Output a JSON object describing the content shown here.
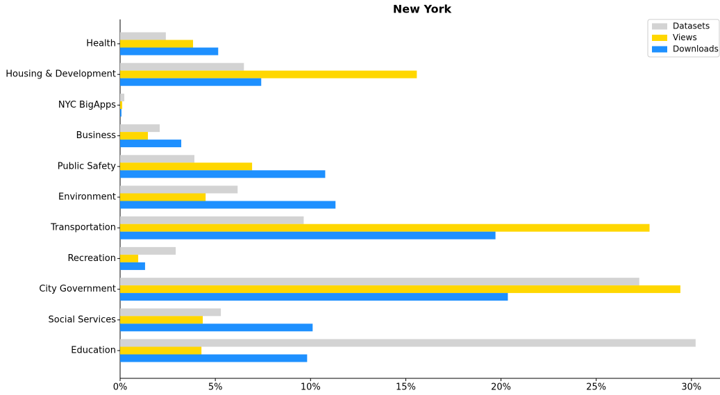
{
  "chart_data": {
    "type": "bar",
    "orientation": "horizontal",
    "title": "New York",
    "categories": [
      "Health",
      "Housing & Development",
      "NYC BigApps",
      "Business",
      "Public Safety",
      "Environment",
      "Transportation",
      "Recreation",
      "City Government",
      "Social Services",
      "Education"
    ],
    "series": [
      {
        "name": "Datasets",
        "color": "#d3d3d3",
        "values": [
          2.4,
          6.5,
          0.22,
          2.08,
          3.9,
          6.17,
          9.64,
          2.92,
          27.26,
          5.29,
          30.22
        ]
      },
      {
        "name": "Views",
        "color": "#ffd700",
        "values": [
          3.83,
          15.58,
          0.11,
          1.46,
          6.93,
          4.49,
          27.8,
          0.95,
          29.42,
          4.34,
          4.27
        ]
      },
      {
        "name": "Downloads",
        "color": "#1e90ff",
        "values": [
          5.15,
          7.41,
          0.07,
          3.21,
          10.77,
          11.31,
          19.71,
          1.31,
          20.36,
          10.11,
          9.82
        ]
      }
    ],
    "xlim": [
      0,
      31.5
    ],
    "xticks": [
      {
        "value": 0,
        "label": "0%"
      },
      {
        "value": 5,
        "label": "5%"
      },
      {
        "value": 10,
        "label": "10%"
      },
      {
        "value": 15,
        "label": "15%"
      },
      {
        "value": 20,
        "label": "20%"
      },
      {
        "value": 25,
        "label": "25%"
      },
      {
        "value": 30,
        "label": "30%"
      }
    ],
    "legend": "upper right",
    "grid": false
  }
}
